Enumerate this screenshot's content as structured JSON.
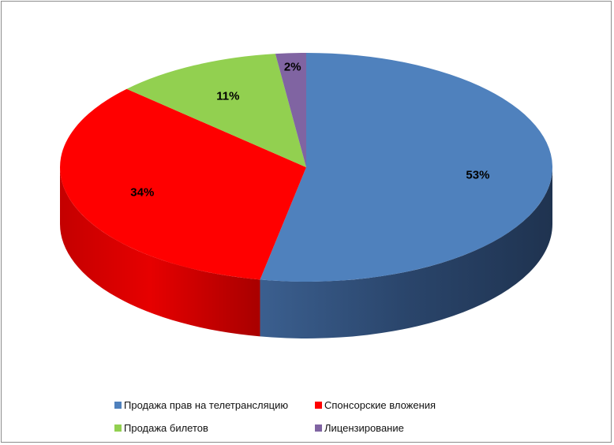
{
  "chart_data": {
    "type": "pie",
    "style": "3d",
    "series": [
      {
        "name": "Продажа прав на телетрансляцию",
        "value": 53,
        "label": "53%",
        "color": "#4f81bd"
      },
      {
        "name": "Спонсорские вложения",
        "value": 34,
        "label": "34%",
        "color": "#ff0000"
      },
      {
        "name": "Продажа билетов",
        "value": 11,
        "label": "11%",
        "color": "#92d050"
      },
      {
        "name": "Лицензирование",
        "value": 2,
        "label": "2%",
        "color": "#8064a2"
      }
    ],
    "legend_placement": "bottom"
  }
}
